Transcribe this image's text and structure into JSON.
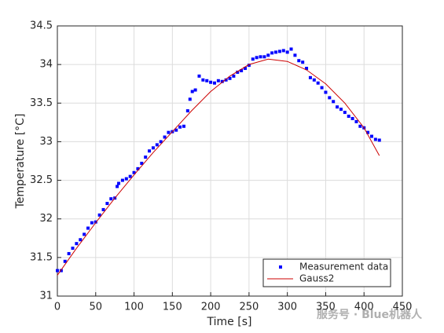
{
  "chart_data": {
    "type": "scatter",
    "xlabel": "Time [s]",
    "ylabel": "Temperature [°C]",
    "xlim": [
      0,
      450
    ],
    "xticks": [
      0,
      50,
      100,
      150,
      200,
      250,
      300,
      350,
      400,
      450
    ],
    "ylim": [
      31,
      34.5
    ],
    "yticks": [
      31,
      31.5,
      32,
      32.5,
      33,
      33.5,
      34,
      34.5
    ],
    "grid": true,
    "legend": "lower-right",
    "series": [
      {
        "name": "Measurement data",
        "color": "#0000ff",
        "mode": "markers",
        "x": [
          0,
          5,
          10,
          15,
          20,
          25,
          30,
          35,
          40,
          45,
          50,
          55,
          60,
          65,
          70,
          75,
          78,
          80,
          85,
          90,
          95,
          100,
          105,
          110,
          115,
          120,
          125,
          130,
          135,
          140,
          145,
          150,
          155,
          160,
          165,
          170,
          173,
          176,
          180,
          185,
          190,
          195,
          200,
          205,
          210,
          215,
          220,
          225,
          230,
          235,
          240,
          245,
          250,
          255,
          260,
          265,
          270,
          275,
          280,
          285,
          290,
          295,
          300,
          305,
          310,
          315,
          320,
          325,
          330,
          335,
          340,
          345,
          350,
          355,
          360,
          365,
          370,
          375,
          380,
          385,
          390,
          395,
          400,
          405,
          410,
          415,
          420
        ],
        "values": [
          31.33,
          31.33,
          31.45,
          31.55,
          31.62,
          31.68,
          31.73,
          31.8,
          31.88,
          31.95,
          31.96,
          32.05,
          32.12,
          32.2,
          32.26,
          32.27,
          32.42,
          32.46,
          32.5,
          32.52,
          32.55,
          32.6,
          32.65,
          32.72,
          32.8,
          32.88,
          32.92,
          32.96,
          33.0,
          33.06,
          33.12,
          33.13,
          33.15,
          33.19,
          33.2,
          33.4,
          33.55,
          33.65,
          33.67,
          33.85,
          33.8,
          33.79,
          33.77,
          33.76,
          33.79,
          33.78,
          33.8,
          33.82,
          33.85,
          33.9,
          33.92,
          33.95,
          33.99,
          34.07,
          34.09,
          34.1,
          34.1,
          34.12,
          34.15,
          34.16,
          34.17,
          34.18,
          34.16,
          34.2,
          34.12,
          34.05,
          34.03,
          33.95,
          33.83,
          33.8,
          33.76,
          33.7,
          33.64,
          33.57,
          33.52,
          33.45,
          33.42,
          33.38,
          33.33,
          33.3,
          33.26,
          33.2,
          33.18,
          33.12,
          33.07,
          33.03,
          33.02
        ]
      },
      {
        "name": "Gauss2",
        "color": "#cc0000",
        "mode": "line",
        "x": [
          0,
          25,
          50,
          75,
          100,
          125,
          150,
          175,
          200,
          225,
          250,
          275,
          300,
          325,
          350,
          375,
          400,
          420
        ],
        "values": [
          31.27,
          31.62,
          31.95,
          32.27,
          32.57,
          32.86,
          33.13,
          33.4,
          33.65,
          33.85,
          34.0,
          34.07,
          34.04,
          33.93,
          33.75,
          33.5,
          33.18,
          32.82
        ]
      }
    ]
  },
  "watermark": "服务号 · Blue机器人"
}
